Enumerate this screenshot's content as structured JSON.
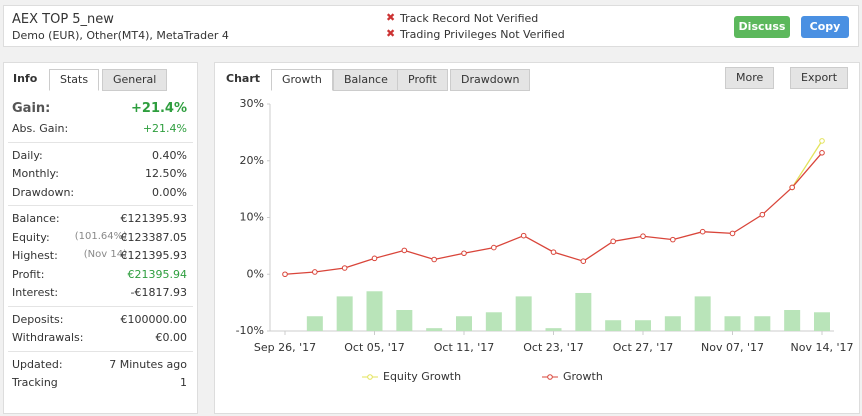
{
  "header": {
    "title": "AEX TOP 5_new",
    "subtitle": "Demo (EUR), Other(MT4), MetaTrader 4",
    "warnings": [
      "Track Record Not Verified",
      "Trading Privileges Not Verified"
    ],
    "buttons": [
      "Discuss",
      "Copy"
    ]
  },
  "info": {
    "tabs": [
      "Info",
      "Stats",
      "General"
    ],
    "sections": [
      [
        {
          "label": "Gain:",
          "value": "+21.4%",
          "color": "#2e9e3e"
        },
        {
          "label": "Abs. Gain:",
          "value": "+21.4%",
          "color": "#2e9e3e"
        }
      ],
      [
        {
          "label": "Daily:",
          "value": "0.40%"
        },
        {
          "label": "Monthly:",
          "value": "12.50%"
        },
        {
          "label": "Drawdown:",
          "value": "0.00%"
        }
      ],
      [
        {
          "label": "Balance:",
          "value": "€121395.93"
        },
        {
          "label": "Equity:",
          "note": "(101.64%)",
          "value": "€123387.05"
        },
        {
          "label": "Highest:",
          "note": "(Nov 14)",
          "value": "€121395.93"
        },
        {
          "label": "Profit:",
          "value": "€21395.94",
          "color": "#2e9e3e"
        },
        {
          "label": "Interest:",
          "value": "-€1817.93"
        }
      ],
      [
        {
          "label": "Deposits:",
          "value": "€100000.00"
        },
        {
          "label": "Withdrawals:",
          "value": "€0.00"
        }
      ],
      [
        {
          "label": "Updated:",
          "value": "7 Minutes ago"
        },
        {
          "label": "Tracking",
          "value": "1"
        }
      ]
    ]
  },
  "chart_panel": {
    "tabs": [
      "Chart",
      "Growth",
      "Balance",
      "Profit",
      "Drawdown"
    ],
    "menus": [
      "More",
      "Export"
    ]
  },
  "chart_data": {
    "type": "line",
    "categories": [
      "Sep 26, '17",
      null,
      null,
      "Oct 05, '17",
      null,
      null,
      "Oct 11, '17",
      null,
      null,
      "Oct 23, '17",
      null,
      null,
      "Oct 27, '17",
      null,
      null,
      "Nov 07, '17",
      null,
      null,
      "Nov 14, '17"
    ],
    "series": [
      {
        "type": "bar",
        "color": "#b9e4b9",
        "values": [
          null,
          -7.4,
          -3.9,
          -3.0,
          -6.3,
          -9.5,
          -7.4,
          -6.7,
          -3.9,
          -9.5,
          -3.3,
          -8.1,
          -8.1,
          -7.4,
          -3.9,
          -7.4,
          -7.4,
          -6.3,
          -6.7
        ]
      },
      {
        "name": "Equity Growth",
        "color": "#e3e35a",
        "values": [
          null,
          null,
          null,
          null,
          null,
          null,
          null,
          null,
          null,
          null,
          null,
          null,
          null,
          null,
          null,
          null,
          null,
          15.3,
          23.5
        ]
      },
      {
        "name": "Growth",
        "color": "#d9453a",
        "values": [
          0,
          0.4,
          1.1,
          2.8,
          4.2,
          2.6,
          3.7,
          4.7,
          6.8,
          3.9,
          2.3,
          5.8,
          6.7,
          6.1,
          7.5,
          7.2,
          10.5,
          15.3,
          21.4
        ]
      }
    ],
    "ylim": [
      -10,
      30
    ],
    "yticks": [
      {
        "value": -10,
        "label": "-10%"
      },
      {
        "value": 0,
        "label": "0%"
      },
      {
        "value": 10,
        "label": "10%"
      },
      {
        "value": 20,
        "label": "20%"
      },
      {
        "value": 30,
        "label": "30%"
      }
    ],
    "grid": false
  }
}
